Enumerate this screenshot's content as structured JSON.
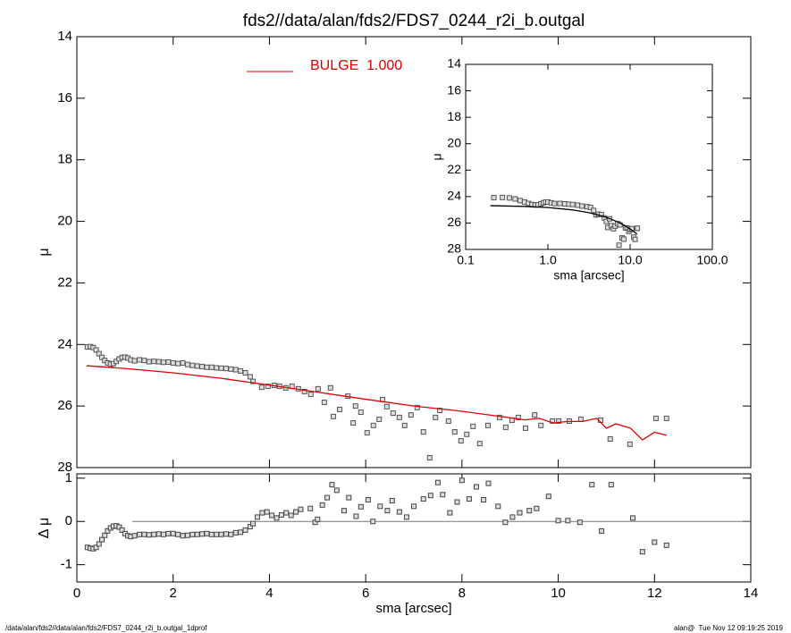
{
  "chart_data": [
    {
      "type": "scatter",
      "title": "fds2//data/alan/fds2/FDS7_0244_r2i_b.outgal",
      "ylabel": "μ",
      "footnote_left": "/data/alan/fds2//data/alan/fds2/FDS7_0244_r2i_b.outgal_1dprof",
      "footnote_right": "alan@  Tue Nov 12 09:19:25 2019",
      "xlim": [
        0,
        14
      ],
      "xticks": [
        0,
        2,
        4,
        6,
        8,
        10,
        12,
        14
      ],
      "ylim": [
        28,
        14
      ],
      "yticks": [
        14,
        16,
        18,
        20,
        22,
        24,
        26,
        28
      ],
      "legend": "upper left",
      "series": [
        {
          "style": "markers",
          "color": "#555555",
          "x": [
            0.22,
            0.28,
            0.34,
            0.4,
            0.46,
            0.52,
            0.58,
            0.64,
            0.7,
            0.76,
            0.82,
            0.88,
            0.94,
            1.0,
            1.06,
            1.12,
            1.2,
            1.3,
            1.4,
            1.5,
            1.6,
            1.7,
            1.8,
            1.9,
            2.0,
            2.1,
            2.2,
            2.3,
            2.4,
            2.5,
            2.6,
            2.7,
            2.8,
            2.9,
            3.0,
            3.1,
            3.2,
            3.3,
            3.4,
            3.5,
            3.6,
            3.66,
            3.84,
            3.97,
            4.1,
            4.21,
            4.34,
            4.47,
            4.6,
            4.73,
            4.86,
            5.01,
            5.14,
            5.27,
            5.33,
            5.46,
            5.63,
            5.74,
            5.79,
            5.9,
            6.03,
            6.16,
            6.28,
            6.35,
            6.44,
            6.57,
            6.7,
            6.81,
            6.94,
            7.07,
            7.2,
            7.33,
            7.45,
            7.54,
            7.72,
            7.85,
            7.98,
            8.1,
            8.23,
            8.37,
            8.54,
            8.78,
            8.91,
            9.04,
            9.17,
            9.32,
            9.51,
            9.64,
            9.88,
            10.01,
            10.23,
            10.47,
            10.88,
            11.08,
            11.49,
            12.03,
            12.25
          ],
          "values": [
            24.08,
            24.07,
            24.1,
            24.18,
            24.3,
            24.42,
            24.52,
            24.6,
            24.64,
            24.62,
            24.55,
            24.47,
            24.42,
            24.41,
            24.44,
            24.5,
            24.53,
            24.5,
            24.52,
            24.56,
            24.55,
            24.56,
            24.58,
            24.57,
            24.6,
            24.62,
            24.6,
            24.65,
            24.68,
            24.7,
            24.72,
            24.74,
            24.74,
            24.76,
            24.77,
            24.78,
            24.8,
            24.82,
            24.86,
            24.92,
            25.05,
            25.2,
            25.39,
            25.36,
            25.33,
            25.36,
            25.41,
            25.36,
            25.44,
            25.53,
            25.62,
            25.44,
            25.88,
            25.41,
            26.34,
            26.11,
            25.68,
            26.55,
            26.0,
            26.2,
            26.87,
            26.63,
            26.43,
            25.79,
            26.02,
            26.23,
            26.37,
            26.63,
            26.29,
            26.05,
            26.84,
            27.68,
            26.37,
            26.14,
            26.49,
            26.84,
            27.13,
            26.92,
            26.66,
            27.22,
            26.63,
            26.37,
            26.69,
            26.46,
            26.37,
            26.72,
            26.29,
            26.63,
            26.49,
            26.49,
            26.49,
            26.43,
            26.46,
            27.07,
            27.24,
            26.4,
            26.4
          ]
        },
        {
          "style": "line",
          "name": "BULGE  1.000",
          "color": "#e00000",
          "x": [
            0.2,
            1,
            2,
            3,
            4,
            5,
            6,
            7,
            8,
            9,
            9.3,
            9.6,
            9.9,
            10.2,
            10.5,
            10.8,
            11.0,
            11.2,
            11.5,
            11.75,
            12.0,
            12.25
          ],
          "values": [
            24.69,
            24.78,
            24.92,
            25.1,
            25.32,
            25.55,
            25.78,
            26.0,
            26.17,
            26.38,
            26.45,
            26.4,
            26.55,
            26.5,
            26.5,
            26.4,
            26.72,
            26.58,
            26.72,
            27.1,
            26.85,
            26.95
          ]
        }
      ]
    },
    {
      "type": "scatter",
      "ylabel": "Δ μ",
      "xlabel": "sma [arcsec]",
      "xlim": [
        0,
        14
      ],
      "xticks": [
        0,
        2,
        4,
        6,
        8,
        10,
        12,
        14
      ],
      "ylim": [
        -1.4,
        1.1
      ],
      "yticks": [
        -1,
        0,
        1
      ],
      "hline": {
        "y": 0,
        "x": [
          1.15,
          14
        ],
        "color": "#777777"
      },
      "series": [
        {
          "style": "markers",
          "color": "#444444",
          "x": [
            0.22,
            0.28,
            0.34,
            0.4,
            0.46,
            0.52,
            0.58,
            0.64,
            0.7,
            0.76,
            0.82,
            0.88,
            0.94,
            1.0,
            1.06,
            1.12,
            1.2,
            1.3,
            1.4,
            1.5,
            1.6,
            1.7,
            1.8,
            1.9,
            2.0,
            2.1,
            2.2,
            2.3,
            2.4,
            2.5,
            2.6,
            2.7,
            2.8,
            2.9,
            3.0,
            3.1,
            3.2,
            3.3,
            3.4,
            3.5,
            3.6,
            3.66,
            3.75,
            3.85,
            3.95,
            4.05,
            4.15,
            4.25,
            4.35,
            4.45,
            4.55,
            4.65,
            4.85,
            4.95,
            5.0,
            5.1,
            5.2,
            5.3,
            5.4,
            5.55,
            5.65,
            5.8,
            5.9,
            6.05,
            6.15,
            6.3,
            6.45,
            6.55,
            6.7,
            6.85,
            7.0,
            7.2,
            7.35,
            7.5,
            7.6,
            7.75,
            7.9,
            8.0,
            8.15,
            8.3,
            8.45,
            8.55,
            8.75,
            8.9,
            9.05,
            9.2,
            9.4,
            9.55,
            9.8,
            10.0,
            10.2,
            10.45,
            10.7,
            10.9,
            11.1,
            11.55,
            11.75,
            12.0,
            12.25
          ],
          "values": [
            -0.6,
            -0.62,
            -0.63,
            -0.6,
            -0.52,
            -0.42,
            -0.32,
            -0.22,
            -0.15,
            -0.11,
            -0.1,
            -0.13,
            -0.2,
            -0.28,
            -0.33,
            -0.35,
            -0.33,
            -0.3,
            -0.3,
            -0.31,
            -0.3,
            -0.29,
            -0.3,
            -0.28,
            -0.28,
            -0.3,
            -0.33,
            -0.32,
            -0.3,
            -0.3,
            -0.29,
            -0.28,
            -0.3,
            -0.3,
            -0.3,
            -0.29,
            -0.3,
            -0.26,
            -0.25,
            -0.2,
            -0.12,
            -0.05,
            0.1,
            0.2,
            0.22,
            0.14,
            0.08,
            0.15,
            0.2,
            0.14,
            0.22,
            0.28,
            0.3,
            -0.02,
            0.05,
            0.38,
            0.55,
            0.85,
            0.72,
            0.25,
            0.55,
            0.12,
            0.34,
            0.5,
            0,
            0.35,
            0.25,
            0.48,
            0.22,
            0.1,
            0.35,
            0.52,
            0.6,
            0.9,
            0.62,
            0.2,
            0.45,
            0.95,
            0.52,
            0.8,
            0.5,
            0.88,
            0.35,
            -0.02,
            0.1,
            0.2,
            0.25,
            0.3,
            0.58,
            0.02,
            0.02,
            -0.02,
            0.85,
            -0.22,
            0.85,
            0.08,
            -0.7,
            -0.48,
            -0.55
          ]
        }
      ]
    },
    {
      "type": "scatter",
      "ylabel": "μ",
      "xlabel": "sma [arcsec]",
      "log_x": true,
      "xlim": [
        0.1,
        100
      ],
      "xticks": [
        0.1,
        {
          "value": 1,
          "label": "1.0"
        },
        {
          "value": 10,
          "label": "10.0"
        },
        {
          "value": 100,
          "label": "100.0"
        }
      ],
      "ylim": [
        28,
        14
      ],
      "yticks": [
        14,
        16,
        18,
        20,
        22,
        24,
        26,
        28
      ],
      "series": [
        {
          "style": "markers",
          "color": "#555555",
          "x": [
            0.22,
            0.28,
            0.34,
            0.4,
            0.46,
            0.52,
            0.58,
            0.64,
            0.7,
            0.76,
            0.82,
            0.88,
            0.94,
            1.0,
            1.1,
            1.2,
            1.4,
            1.6,
            1.8,
            2.0,
            2.3,
            2.6,
            3.0,
            3.3,
            3.6,
            3.84,
            4.1,
            4.47,
            4.86,
            5.14,
            5.33,
            5.63,
            5.9,
            6.28,
            6.57,
            7.07,
            7.33,
            7.54,
            7.98,
            8.37,
            8.78,
            9.17,
            9.64,
            10.01,
            10.47,
            11.08,
            11.49,
            12.03,
            12.25
          ],
          "values": [
            24.08,
            24.07,
            24.1,
            24.18,
            24.3,
            24.42,
            24.52,
            24.6,
            24.64,
            24.62,
            24.55,
            24.47,
            24.42,
            24.41,
            24.47,
            24.53,
            24.52,
            24.55,
            24.58,
            24.6,
            24.65,
            24.72,
            24.77,
            24.82,
            25.05,
            25.39,
            25.33,
            25.36,
            25.62,
            25.88,
            26.34,
            25.68,
            26.2,
            26.43,
            26.23,
            26.05,
            27.68,
            26.14,
            27.13,
            27.22,
            26.37,
            26.37,
            26.63,
            26.49,
            26.43,
            27.07,
            27.24,
            26.4,
            26.4
          ]
        },
        {
          "style": "line",
          "color": "#000000",
          "x": [
            0.2,
            0.5,
            1,
            2,
            3,
            4,
            5,
            6,
            7,
            8,
            9,
            10,
            11,
            12.2
          ],
          "values": [
            24.69,
            24.74,
            24.83,
            25.01,
            25.19,
            25.37,
            25.55,
            25.73,
            25.91,
            26.09,
            26.27,
            26.45,
            26.63,
            26.85
          ]
        }
      ]
    }
  ]
}
